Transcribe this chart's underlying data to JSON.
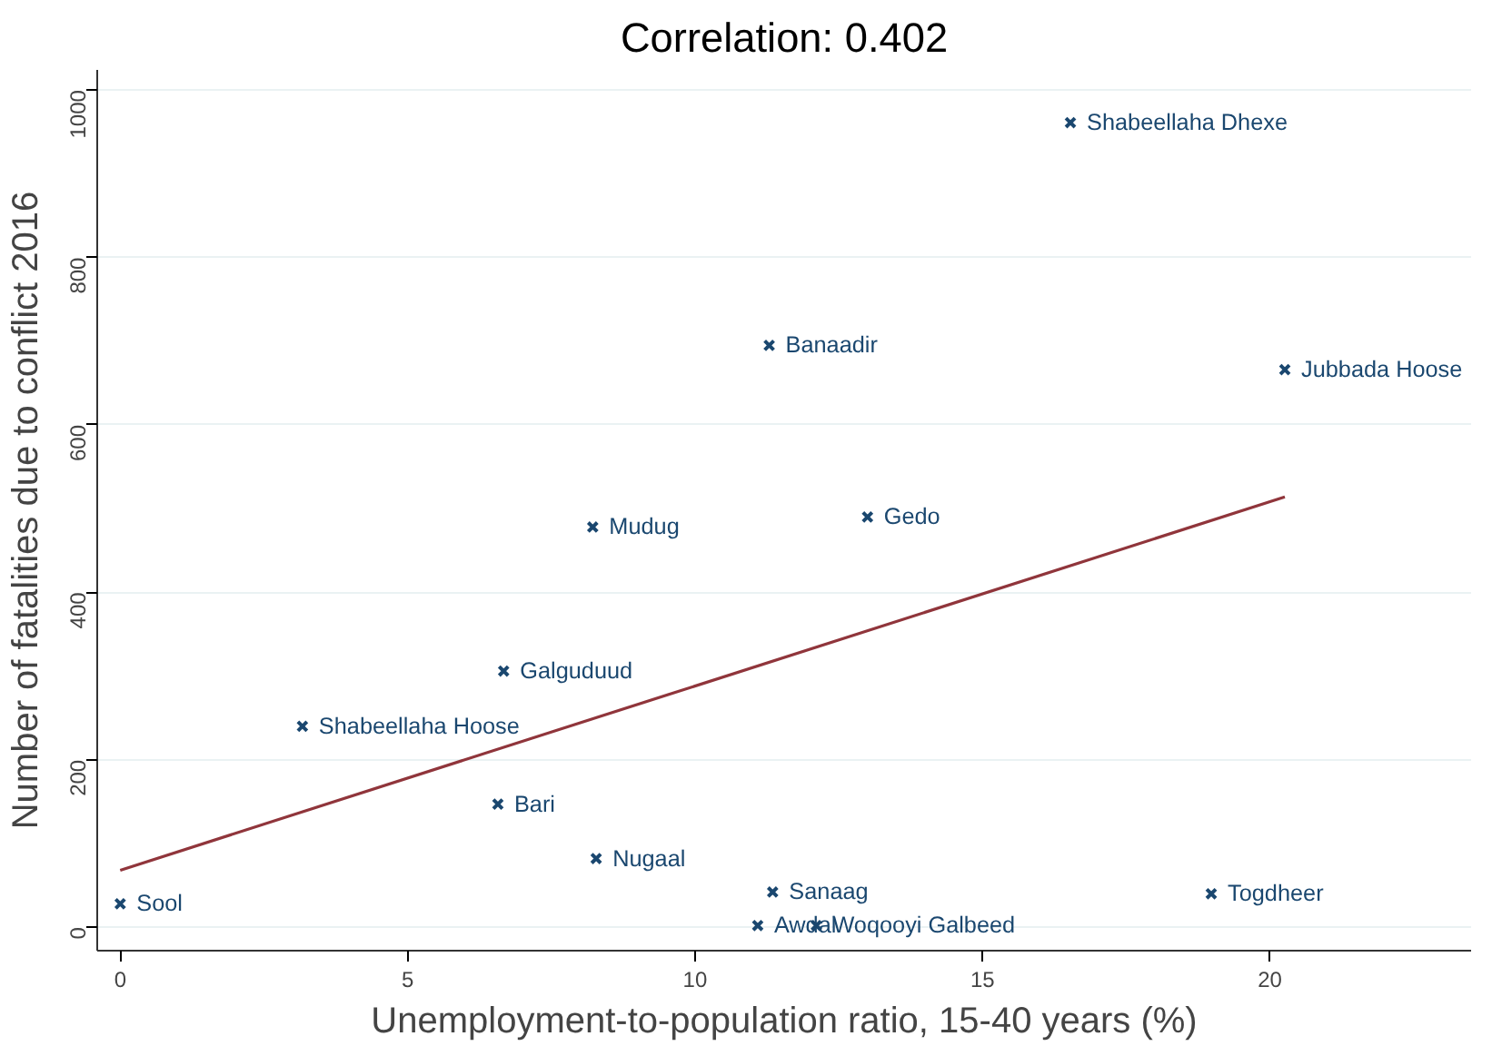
{
  "chart_data": {
    "type": "scatter",
    "title": "Correlation: 0.402",
    "xlabel": "Unemployment-to-population ratio, 15-40 years (%)",
    "ylabel": "Number of fatalities due to conflict 2016",
    "xlim": [
      -0.4,
      23.5
    ],
    "ylim": [
      -28,
      1024
    ],
    "xticks": [
      0,
      5,
      10,
      15,
      20
    ],
    "yticks": [
      0,
      200,
      400,
      600,
      800,
      1000
    ],
    "grid": "y",
    "series": [
      {
        "marker": "cross",
        "color": "#1a476f",
        "x": [
          0,
          3.17,
          6.57,
          6.67,
          8.22,
          8.28,
          11.29,
          11.35,
          11.09,
          12.11,
          13.0,
          16.53,
          20.26,
          18.98
        ],
        "values": [
          28,
          240,
          147,
          306,
          478,
          82,
          695,
          42,
          2,
          2,
          490,
          961,
          666,
          40
        ]
      },
      {
        "type": "line",
        "marker": "none",
        "color": "#90353b",
        "x": [
          0,
          20.26
        ],
        "values": [
          68,
          514
        ]
      }
    ],
    "annotations": [
      {
        "text": "Sool",
        "x": 0,
        "y": 28
      },
      {
        "text": "Shabeellaha Hoose",
        "x": 3.17,
        "y": 240
      },
      {
        "text": "Bari",
        "x": 6.57,
        "y": 147
      },
      {
        "text": "Galguduud",
        "x": 6.67,
        "y": 306
      },
      {
        "text": "Mudug",
        "x": 8.22,
        "y": 478
      },
      {
        "text": "Nugaal",
        "x": 8.28,
        "y": 82
      },
      {
        "text": "Banaadir",
        "x": 11.29,
        "y": 695
      },
      {
        "text": "Sanaag",
        "x": 11.35,
        "y": 42
      },
      {
        "text": "Awdal",
        "x": 11.09,
        "y": 2
      },
      {
        "text": "Woqooyi Galbeed",
        "x": 12.11,
        "y": 2
      },
      {
        "text": "Gedo",
        "x": 13.0,
        "y": 490
      },
      {
        "text": "Shabeellaha Dhexe",
        "x": 16.53,
        "y": 961
      },
      {
        "text": "Jubbada Hoose",
        "x": 20.26,
        "y": 666
      },
      {
        "text": "Togdheer",
        "x": 18.98,
        "y": 40
      }
    ]
  }
}
